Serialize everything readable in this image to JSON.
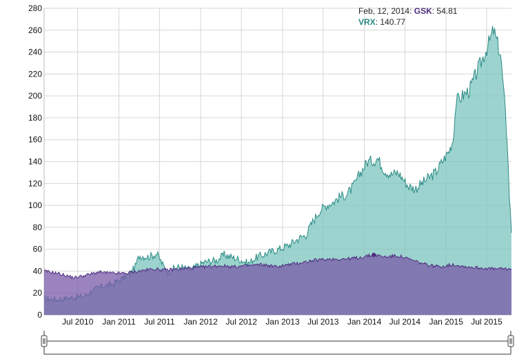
{
  "tooltip": {
    "date": "Feb, 12, 2014",
    "gsk_label": "GSK",
    "gsk_value": "54.81",
    "vrx_label": "VRX",
    "vrx_value": "140.77"
  },
  "colors": {
    "gsk": "#4b2d7f",
    "vrx": "#2a8a85",
    "gsk_fill": "#7a5aa8",
    "vrx_fill": "#7cc4bd"
  },
  "chart_data": {
    "type": "area",
    "title": "",
    "xlabel": "",
    "ylabel": "",
    "ylim": [
      0,
      280
    ],
    "yticks": [
      0,
      20,
      40,
      60,
      80,
      100,
      120,
      140,
      160,
      180,
      200,
      220,
      240,
      260,
      280
    ],
    "xlim": [
      "2010-02-01",
      "2015-10-20"
    ],
    "xticks": [
      {
        "date": "2010-07-01",
        "label": "Jul 2010"
      },
      {
        "date": "2011-01-01",
        "label": "Jan 2011"
      },
      {
        "date": "2011-07-01",
        "label": "Jul 2011"
      },
      {
        "date": "2012-01-01",
        "label": "Jan 2012"
      },
      {
        "date": "2012-07-01",
        "label": "Jul 2012"
      },
      {
        "date": "2013-01-01",
        "label": "Jan 2013"
      },
      {
        "date": "2013-07-01",
        "label": "Jul 2013"
      },
      {
        "date": "2014-01-01",
        "label": "Jan 2014"
      },
      {
        "date": "2014-07-01",
        "label": "Jul 2014"
      },
      {
        "date": "2015-01-01",
        "label": "Jan 2015"
      },
      {
        "date": "2015-07-01",
        "label": "Jul 2015"
      }
    ],
    "grid": true,
    "series": [
      {
        "name": "VRX",
        "points": [
          [
            "2010-02-01",
            15
          ],
          [
            "2010-04-01",
            14
          ],
          [
            "2010-06-15",
            16
          ],
          [
            "2010-08-01",
            17
          ],
          [
            "2010-09-01",
            22
          ],
          [
            "2010-10-15",
            26
          ],
          [
            "2010-12-01",
            28
          ],
          [
            "2011-01-15",
            33
          ],
          [
            "2011-02-20",
            38
          ],
          [
            "2011-03-15",
            44
          ],
          [
            "2011-04-01",
            54
          ],
          [
            "2011-05-15",
            53
          ],
          [
            "2011-06-20",
            56
          ],
          [
            "2011-07-15",
            46
          ],
          [
            "2011-08-10",
            38
          ],
          [
            "2011-08-25",
            42
          ],
          [
            "2011-10-01",
            44
          ],
          [
            "2011-11-15",
            41
          ],
          [
            "2012-01-15",
            48
          ],
          [
            "2012-03-15",
            50
          ],
          [
            "2012-04-15",
            55
          ],
          [
            "2012-05-15",
            53
          ],
          [
            "2012-07-01",
            50
          ],
          [
            "2012-08-01",
            47
          ],
          [
            "2012-09-01",
            52
          ],
          [
            "2012-11-01",
            57
          ],
          [
            "2012-12-15",
            60
          ],
          [
            "2013-02-01",
            64
          ],
          [
            "2013-03-15",
            70
          ],
          [
            "2013-04-15",
            73
          ],
          [
            "2013-05-15",
            85
          ],
          [
            "2013-06-15",
            95
          ],
          [
            "2013-07-15",
            100
          ],
          [
            "2013-08-15",
            103
          ],
          [
            "2013-09-15",
            108
          ],
          [
            "2013-10-15",
            110
          ],
          [
            "2013-11-15",
            118
          ],
          [
            "2013-12-15",
            130
          ],
          [
            "2014-01-15",
            140
          ],
          [
            "2014-02-12",
            140.77
          ],
          [
            "2014-03-01",
            143
          ],
          [
            "2014-04-01",
            132
          ],
          [
            "2014-05-01",
            128
          ],
          [
            "2014-06-01",
            130
          ],
          [
            "2014-07-15",
            118
          ],
          [
            "2014-08-15",
            115
          ],
          [
            "2014-09-15",
            120
          ],
          [
            "2014-10-15",
            125
          ],
          [
            "2014-11-15",
            130
          ],
          [
            "2014-12-15",
            140
          ],
          [
            "2015-01-15",
            150
          ],
          [
            "2015-02-01",
            160
          ],
          [
            "2015-02-15",
            195
          ],
          [
            "2015-03-15",
            200
          ],
          [
            "2015-04-15",
            205
          ],
          [
            "2015-05-15",
            220
          ],
          [
            "2015-06-15",
            235
          ],
          [
            "2015-07-15",
            250
          ],
          [
            "2015-08-01",
            260
          ],
          [
            "2015-08-15",
            250
          ],
          [
            "2015-09-01",
            238
          ],
          [
            "2015-09-15",
            205
          ],
          [
            "2015-10-01",
            160
          ],
          [
            "2015-10-10",
            110
          ],
          [
            "2015-10-20",
            75
          ]
        ]
      },
      {
        "name": "GSK",
        "points": [
          [
            "2010-02-01",
            40
          ],
          [
            "2010-04-01",
            38
          ],
          [
            "2010-06-15",
            34
          ],
          [
            "2010-08-01",
            36
          ],
          [
            "2010-10-01",
            39
          ],
          [
            "2010-12-01",
            38
          ],
          [
            "2011-02-01",
            38
          ],
          [
            "2011-04-01",
            40
          ],
          [
            "2011-06-01",
            42
          ],
          [
            "2011-08-01",
            41
          ],
          [
            "2011-10-01",
            42
          ],
          [
            "2011-12-01",
            43
          ],
          [
            "2012-02-01",
            44
          ],
          [
            "2012-04-01",
            45
          ],
          [
            "2012-06-01",
            44
          ],
          [
            "2012-08-01",
            45
          ],
          [
            "2012-10-01",
            46
          ],
          [
            "2012-12-01",
            44
          ],
          [
            "2013-02-01",
            46
          ],
          [
            "2013-04-01",
            48
          ],
          [
            "2013-06-01",
            50
          ],
          [
            "2013-08-01",
            51
          ],
          [
            "2013-10-01",
            51
          ],
          [
            "2013-12-01",
            52
          ],
          [
            "2014-02-12",
            54.81
          ],
          [
            "2014-04-01",
            53
          ],
          [
            "2014-06-01",
            54
          ],
          [
            "2014-08-01",
            50
          ],
          [
            "2014-10-01",
            46
          ],
          [
            "2014-12-01",
            44
          ],
          [
            "2015-02-01",
            46
          ],
          [
            "2015-04-01",
            44
          ],
          [
            "2015-06-01",
            43
          ],
          [
            "2015-08-01",
            42
          ],
          [
            "2015-10-20",
            42
          ]
        ]
      }
    ],
    "highlight": {
      "date": "2014-02-12",
      "series": "GSK",
      "value": 54.81
    }
  }
}
